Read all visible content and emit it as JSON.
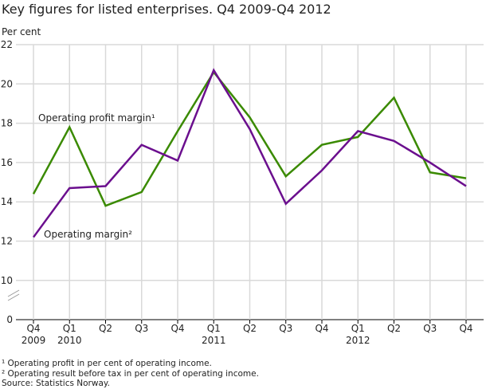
{
  "chart_data": {
    "type": "line",
    "title": "Key figures for listed enterprises. Q4 2009-Q4 2012",
    "ylabel": "Per cent",
    "xlabel": "",
    "categories": [
      [
        "Q4",
        "2009"
      ],
      [
        "Q1",
        "2010"
      ],
      [
        "Q2",
        ""
      ],
      [
        "Q3",
        ""
      ],
      [
        "Q4",
        ""
      ],
      [
        "Q1",
        "2011"
      ],
      [
        "Q2",
        ""
      ],
      [
        "Q3",
        ""
      ],
      [
        "Q4",
        ""
      ],
      [
        "Q1",
        "2012"
      ],
      [
        "Q2",
        ""
      ],
      [
        "Q3",
        ""
      ],
      [
        "Q4",
        ""
      ]
    ],
    "y_ticks": [
      0,
      10,
      12,
      14,
      16,
      18,
      20,
      22
    ],
    "ylim": [
      10,
      22
    ],
    "axis_break": true,
    "grid": true,
    "series": [
      {
        "name": "Operating profit margin¹",
        "color": "#3a8a00",
        "values": [
          14.4,
          17.8,
          13.8,
          14.5,
          17.6,
          20.6,
          18.3,
          15.3,
          16.9,
          17.3,
          19.3,
          15.5,
          15.2
        ]
      },
      {
        "name": "Operating margin²",
        "color": "#6b0f8e",
        "values": [
          12.2,
          14.7,
          14.8,
          16.9,
          16.1,
          20.7,
          17.7,
          13.9,
          15.6,
          17.6,
          17.1,
          16.0,
          14.8
        ]
      }
    ],
    "footnotes": [
      "¹ Operating profit in per cent of operating income.",
      "² Operating result before tax in per cent of operating income.",
      "Source: Statistics Norway."
    ]
  }
}
